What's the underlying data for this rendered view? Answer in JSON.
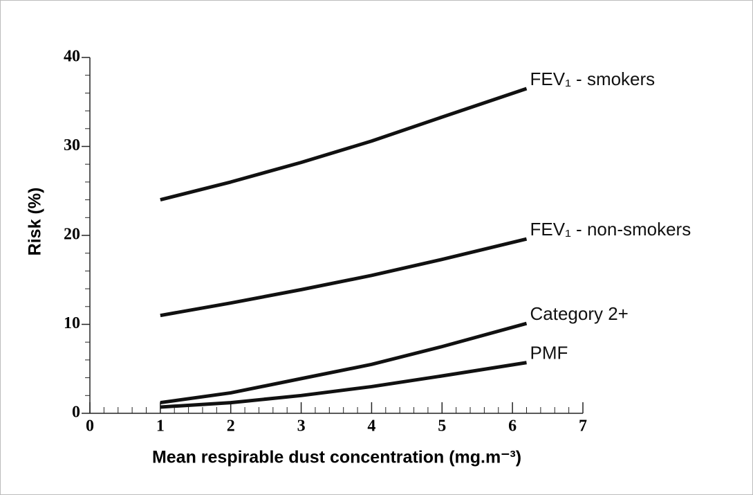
{
  "chart_data": {
    "type": "line",
    "x_label": "Mean respirable dust concentration (mg.m⁻³)",
    "y_label": "Risk (%)",
    "x": [
      1,
      2,
      3,
      4,
      5,
      6.2
    ],
    "series": [
      {
        "name": "FEV₁ - smokers",
        "color": "#111111",
        "values": [
          24.0,
          26.0,
          28.2,
          30.6,
          33.3,
          36.5
        ]
      },
      {
        "name": "FEV₁ - non-smokers",
        "color": "#111111",
        "values": [
          11.0,
          12.4,
          13.9,
          15.5,
          17.3,
          19.6
        ]
      },
      {
        "name": "Category 2+",
        "color": "#111111",
        "values": [
          1.2,
          2.3,
          3.9,
          5.5,
          7.5,
          10.1
        ]
      },
      {
        "name": "PMF",
        "color": "#111111",
        "values": [
          0.7,
          1.2,
          2.0,
          3.0,
          4.2,
          5.7
        ]
      }
    ],
    "xlim": [
      0,
      7
    ],
    "xticks": [
      0,
      1,
      2,
      3,
      4,
      5,
      6,
      7
    ],
    "ylim": [
      0,
      40
    ],
    "yticks": [
      0,
      10,
      20,
      30,
      40
    ],
    "grid": false
  }
}
